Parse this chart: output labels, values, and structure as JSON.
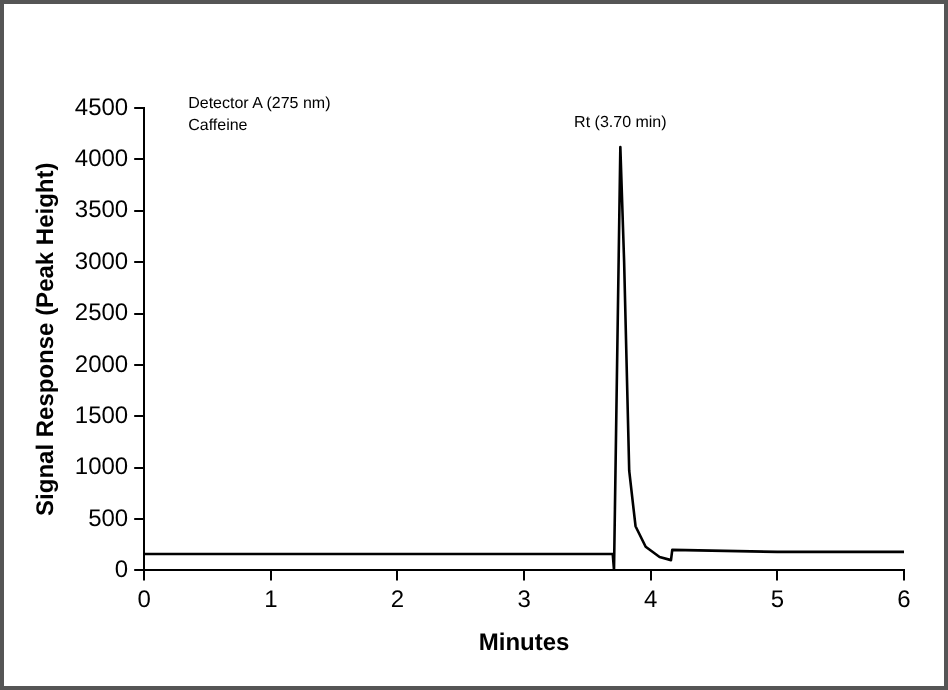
{
  "chart_data": {
    "type": "line",
    "xlabel": "Minutes",
    "ylabel": "Signal Response (Peak Height)",
    "annotations": [
      "Detector A (275 nm)",
      "Caffeine",
      {
        "text": "Rt (3.70 min)",
        "x": 3.76,
        "y": 4120
      }
    ],
    "x": [
      0,
      0.3,
      3.7,
      3.71,
      3.76,
      3.79,
      3.83,
      3.88,
      3.96,
      4.07,
      4.16,
      4.17,
      5,
      6
    ],
    "series": [
      {
        "color": "#000000",
        "values": [
          160,
          160,
          160,
          0,
          4120,
          3000,
          970,
          430,
          230,
          130,
          100,
          200,
          180,
          180
        ]
      }
    ],
    "xlim": [
      0,
      6
    ],
    "xticks": [
      0,
      1,
      2,
      3,
      4,
      5,
      6
    ],
    "ylim": [
      0,
      4500
    ],
    "yticks": [
      0,
      500,
      1000,
      1500,
      2000,
      2500,
      3000,
      3500,
      4000,
      4500
    ],
    "grid": false,
    "legend": false,
    "marker": "none",
    "line_style": "solid"
  }
}
